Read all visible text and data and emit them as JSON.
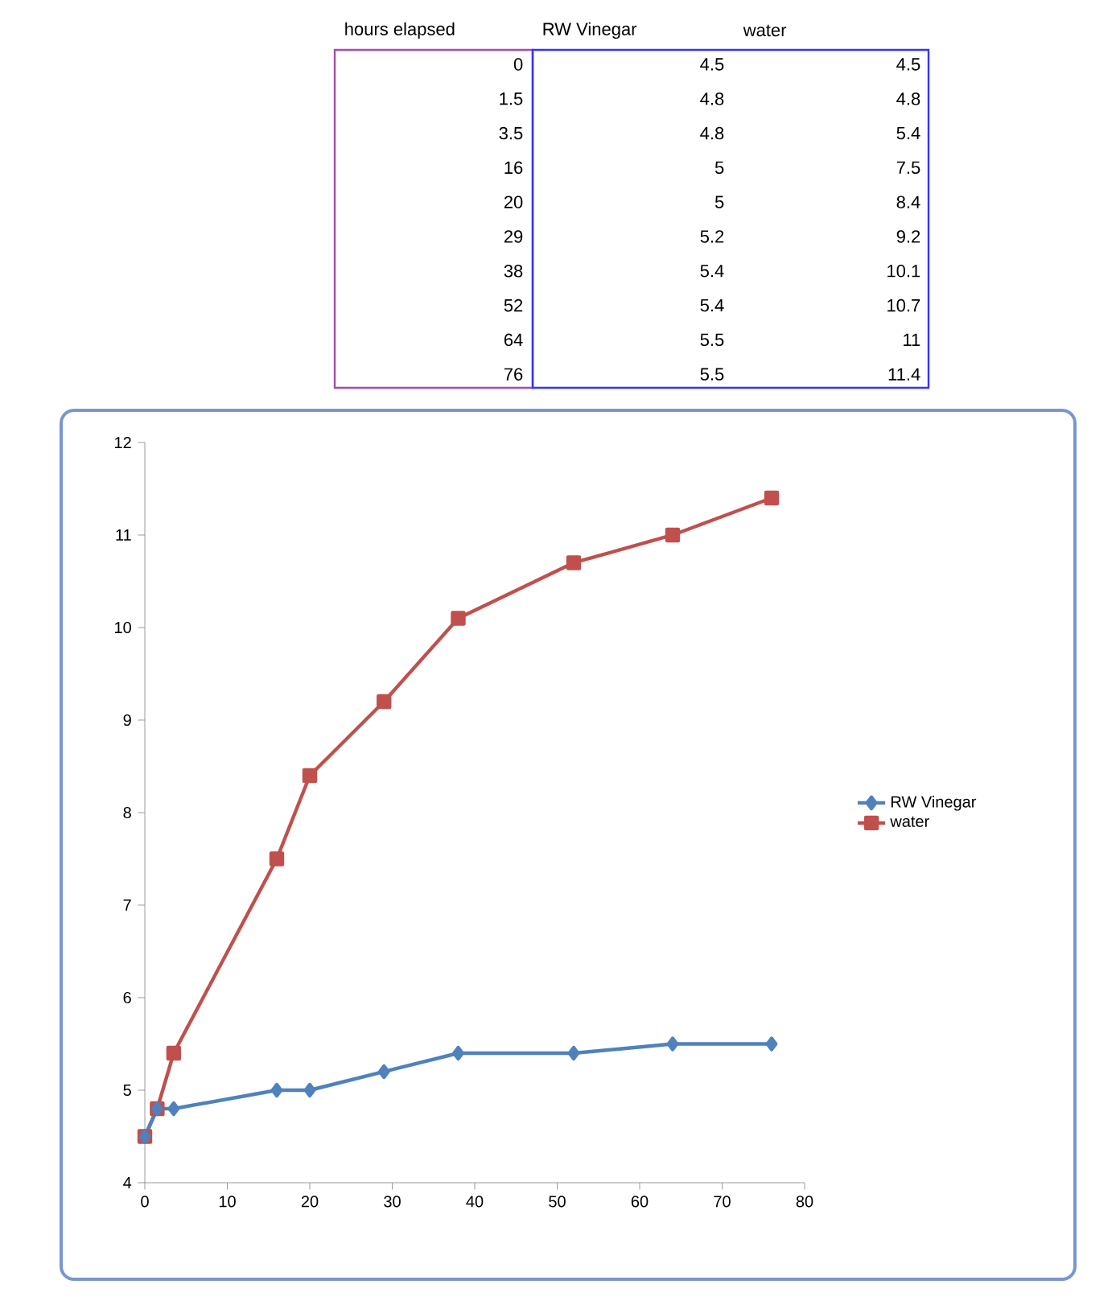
{
  "chart_data": [
    {
      "type": "other",
      "annotations": [
        "hours elapsed",
        "RW Vinegar",
        "water",
        "0",
        "4.5",
        "4.5",
        "1.5",
        "4.8",
        "4.8",
        "3.5",
        "4.8",
        "5.4",
        "16",
        "5",
        "7.5",
        "20",
        "5",
        "8.4",
        "29",
        "5.2",
        "9.2",
        "38",
        "5.4",
        "10.1",
        "52",
        "5.4",
        "10.7",
        "64",
        "5.5",
        "11",
        "76",
        "5.5",
        "11.4"
      ]
    },
    {
      "type": "line",
      "x": [
        0,
        1.5,
        3.5,
        16,
        20,
        29,
        38,
        52,
        64,
        76
      ],
      "series": [
        {
          "name": "RW Vinegar",
          "color": "#4f81bd",
          "marker": "diamond",
          "values": [
            4.5,
            4.8,
            4.8,
            5,
            5,
            5.2,
            5.4,
            5.4,
            5.5,
            5.5
          ]
        },
        {
          "name": "water",
          "color": "#c0504d",
          "marker": "square",
          "values": [
            4.5,
            4.8,
            5.4,
            7.5,
            8.4,
            9.2,
            10.1,
            10.7,
            11,
            11.4
          ]
        }
      ],
      "xlim": [
        0,
        80
      ],
      "xticks": [
        0,
        10,
        20,
        30,
        40,
        50,
        60,
        70,
        80
      ],
      "ylim": [
        4,
        12
      ],
      "yticks": [
        4,
        5,
        6,
        7,
        8,
        9,
        10,
        11,
        12
      ],
      "grid": false,
      "legend": "right",
      "line_style": "solid"
    }
  ]
}
